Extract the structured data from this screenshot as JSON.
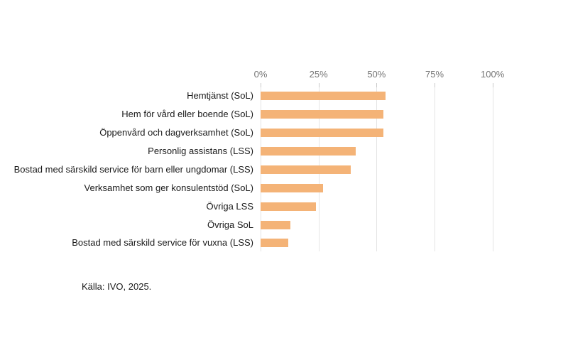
{
  "chart_data": {
    "type": "bar",
    "orientation": "horizontal",
    "categories": [
      "Hemtjänst (SoL)",
      "Hem för vård eller boende (SoL)",
      "Öppenvård och dagverksamhet (SoL)",
      "Personlig assistans (LSS)",
      "Bostad med särskild service för barn eller ungdomar (LSS)",
      "Verksamhet som ger konsulentstöd (SoL)",
      "Övriga LSS",
      "Övriga SoL",
      "Bostad med särskild service för vuxna (LSS)"
    ],
    "values": [
      54,
      53,
      53,
      41,
      39,
      27,
      24,
      13,
      12
    ],
    "unit": "%",
    "x_ticks": [
      "0%",
      "25%",
      "50%",
      "75%",
      "100%"
    ],
    "x_tick_values": [
      0,
      25,
      50,
      75,
      100
    ],
    "xlim": [
      0,
      100
    ],
    "grid": true,
    "legend": false,
    "bar_color": "#f4b377",
    "gridline_color": "#e4e4e4",
    "tick_color": "#c9c9c9",
    "axis_label_color": "#757575",
    "category_label_color": "#1a1a1a",
    "source": "Källa: IVO, 2025."
  }
}
